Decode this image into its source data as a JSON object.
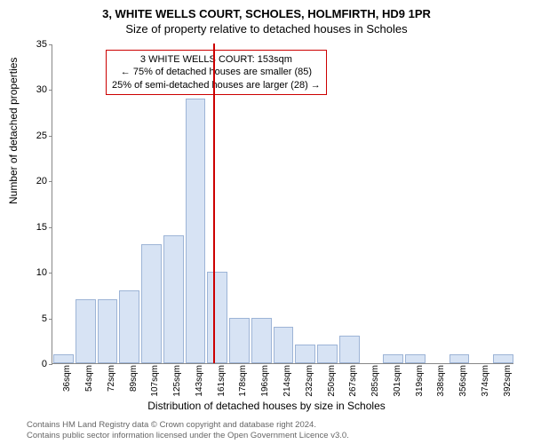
{
  "title_line1": "3, WHITE WELLS COURT, SCHOLES, HOLMFIRTH, HD9 1PR",
  "title_line2": "Size of property relative to detached houses in Scholes",
  "ylabel": "Number of detached properties",
  "xlabel": "Distribution of detached houses by size in Scholes",
  "ylim": [
    0,
    35
  ],
  "ytick_step": 5,
  "yticks": [
    0,
    5,
    10,
    15,
    20,
    25,
    30,
    35
  ],
  "categories": [
    "36sqm",
    "54sqm",
    "72sqm",
    "89sqm",
    "107sqm",
    "125sqm",
    "143sqm",
    "161sqm",
    "178sqm",
    "196sqm",
    "214sqm",
    "232sqm",
    "250sqm",
    "267sqm",
    "285sqm",
    "301sqm",
    "319sqm",
    "338sqm",
    "356sqm",
    "374sqm",
    "392sqm"
  ],
  "values": [
    1,
    7,
    7,
    8,
    13,
    14,
    29,
    10,
    5,
    5,
    4,
    2,
    2,
    3,
    0,
    1,
    1,
    0,
    1,
    0,
    1
  ],
  "bar_fill": "#d7e3f4",
  "bar_stroke": "#9db4d6",
  "reference_index": 6.8,
  "reference_color": "#cc0000",
  "annotation": {
    "line1": "3 WHITE WELLS COURT: 153sqm",
    "line2": "← 75% of detached houses are smaller (85)",
    "line3": "25% of semi-detached houses are larger (28) →"
  },
  "footer": {
    "line1": "Contains HM Land Registry data © Crown copyright and database right 2024.",
    "line2": "Contains public sector information licensed under the Open Government Licence v3.0."
  },
  "plot_bg": "#ffffff",
  "axis_color": "#888888",
  "label_fontsize": 12,
  "tick_fontsize": 11
}
